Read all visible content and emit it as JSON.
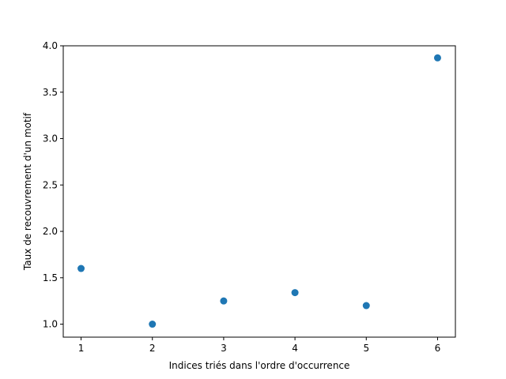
{
  "chart_data": {
    "type": "scatter",
    "title": "",
    "xlabel": "Indices triés dans l'ordre d'occurrence",
    "ylabel": "Taux de recouvrement d'un motif",
    "xlim": [
      0.75,
      6.25
    ],
    "ylim": [
      0.86,
      4.0
    ],
    "x_ticks": [
      1,
      2,
      3,
      4,
      5,
      6
    ],
    "x_tick_labels": [
      "1",
      "2",
      "3",
      "4",
      "5",
      "6"
    ],
    "y_ticks": [
      1.0,
      1.5,
      2.0,
      2.5,
      3.0,
      3.5,
      4.0
    ],
    "y_tick_labels": [
      "1.0",
      "1.5",
      "2.0",
      "2.5",
      "3.0",
      "3.5",
      "4.0"
    ],
    "grid": false,
    "legend": "none",
    "series": [
      {
        "color": "#1f77b4",
        "x": [
          1,
          2,
          3,
          4,
          5,
          6
        ],
        "y": [
          1.6,
          1.0,
          1.25,
          1.34,
          1.2,
          3.87
        ]
      }
    ]
  }
}
